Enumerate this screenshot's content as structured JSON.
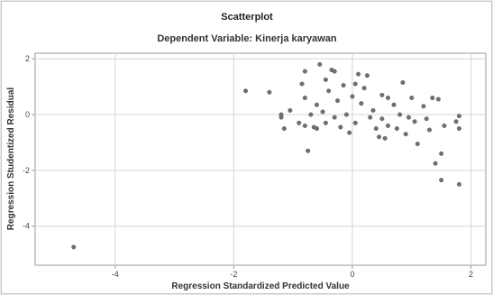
{
  "chart_data": {
    "type": "scatter",
    "title": "Scatterplot",
    "subtitle": "Dependent Variable: Kinerja karyawan",
    "xlabel": "Regression Standardized Predicted Value",
    "ylabel": "Regression Studentized Residual",
    "xlim": [
      -5.35,
      2.25
    ],
    "ylim": [
      -5.4,
      2.2
    ],
    "x_ticks": [
      -4,
      -2,
      0,
      2
    ],
    "y_ticks": [
      2,
      0,
      -2,
      -4
    ],
    "x_tick_labels": [
      "-4",
      "-2",
      "0",
      "2"
    ],
    "y_tick_labels": [
      "2",
      "0",
      "-2",
      "-4"
    ],
    "grid": true,
    "colors": {
      "points": "#707070",
      "grid": "#d4d4d4",
      "axis": "#9a9a9a"
    },
    "points": [
      {
        "x": -4.7,
        "y": -4.75
      },
      {
        "x": -1.8,
        "y": 0.85
      },
      {
        "x": -1.4,
        "y": 0.8
      },
      {
        "x": -1.2,
        "y": 0.0
      },
      {
        "x": -1.2,
        "y": -0.1
      },
      {
        "x": -1.15,
        "y": -0.5
      },
      {
        "x": -1.05,
        "y": 0.15
      },
      {
        "x": -0.9,
        "y": -0.3
      },
      {
        "x": -0.85,
        "y": 1.1
      },
      {
        "x": -0.8,
        "y": 1.55
      },
      {
        "x": -0.8,
        "y": 0.6
      },
      {
        "x": -0.8,
        "y": -0.4
      },
      {
        "x": -0.75,
        "y": -1.3
      },
      {
        "x": -0.7,
        "y": 0.0
      },
      {
        "x": -0.65,
        "y": -0.45
      },
      {
        "x": -0.6,
        "y": 0.35
      },
      {
        "x": -0.6,
        "y": -0.5
      },
      {
        "x": -0.55,
        "y": 1.8
      },
      {
        "x": -0.5,
        "y": 0.1
      },
      {
        "x": -0.45,
        "y": 1.25
      },
      {
        "x": -0.45,
        "y": -0.3
      },
      {
        "x": -0.4,
        "y": 0.85
      },
      {
        "x": -0.35,
        "y": 1.6
      },
      {
        "x": -0.3,
        "y": 1.55
      },
      {
        "x": -0.3,
        "y": -0.1
      },
      {
        "x": -0.25,
        "y": 0.5
      },
      {
        "x": -0.2,
        "y": -0.45
      },
      {
        "x": -0.15,
        "y": 1.05
      },
      {
        "x": -0.1,
        "y": 0.0
      },
      {
        "x": -0.05,
        "y": -0.65
      },
      {
        "x": 0.0,
        "y": 0.65
      },
      {
        "x": 0.05,
        "y": 1.1
      },
      {
        "x": 0.05,
        "y": -0.3
      },
      {
        "x": 0.1,
        "y": 1.45
      },
      {
        "x": 0.15,
        "y": 0.4
      },
      {
        "x": 0.2,
        "y": 0.95
      },
      {
        "x": 0.25,
        "y": 1.4
      },
      {
        "x": 0.3,
        "y": -0.1
      },
      {
        "x": 0.35,
        "y": 0.15
      },
      {
        "x": 0.4,
        "y": -0.5
      },
      {
        "x": 0.45,
        "y": -0.8
      },
      {
        "x": 0.5,
        "y": 0.7
      },
      {
        "x": 0.5,
        "y": -0.15
      },
      {
        "x": 0.55,
        "y": -0.85
      },
      {
        "x": 0.6,
        "y": 0.6
      },
      {
        "x": 0.6,
        "y": -0.4
      },
      {
        "x": 0.7,
        "y": 0.35
      },
      {
        "x": 0.75,
        "y": -0.5
      },
      {
        "x": 0.8,
        "y": 0.0
      },
      {
        "x": 0.85,
        "y": 1.15
      },
      {
        "x": 0.9,
        "y": -0.7
      },
      {
        "x": 0.95,
        "y": -0.1
      },
      {
        "x": 1.0,
        "y": 0.6
      },
      {
        "x": 1.05,
        "y": -0.25
      },
      {
        "x": 1.1,
        "y": -1.05
      },
      {
        "x": 1.2,
        "y": 0.3
      },
      {
        "x": 1.25,
        "y": -0.15
      },
      {
        "x": 1.3,
        "y": -0.55
      },
      {
        "x": 1.35,
        "y": 0.6
      },
      {
        "x": 1.4,
        "y": -1.75
      },
      {
        "x": 1.45,
        "y": 0.55
      },
      {
        "x": 1.5,
        "y": -1.4
      },
      {
        "x": 1.55,
        "y": -0.4
      },
      {
        "x": 1.5,
        "y": -2.35
      },
      {
        "x": 1.75,
        "y": -0.25
      },
      {
        "x": 1.8,
        "y": -0.5
      },
      {
        "x": 1.8,
        "y": -0.05
      },
      {
        "x": 1.8,
        "y": -2.5
      }
    ]
  }
}
